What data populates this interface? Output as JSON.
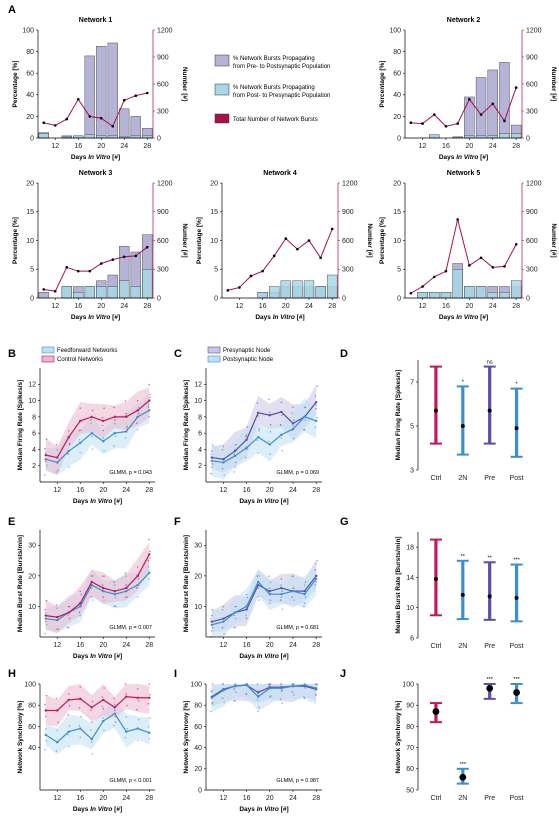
{
  "colors": {
    "pre_post": "#b5b3d8",
    "post_pre": "#a7d8e6",
    "total": "#a8104a",
    "ff": "#3a8fd0",
    "ff_fill": "#bfe0f2",
    "ctrl": "#c2185b",
    "ctrl_fill": "#e9b8cd",
    "pre": "#5a4fa8",
    "pre_fill": "#c9c4e4",
    "post": "#3a8fd0",
    "post_fill": "#bfe0f2"
  },
  "letters": [
    "A",
    "B",
    "C",
    "D",
    "E",
    "F",
    "G",
    "H",
    "I",
    "J"
  ],
  "days": [
    10,
    12,
    14,
    16,
    18,
    20,
    22,
    24,
    26,
    28
  ],
  "legendA": {
    "item1a": "% Network Bursts Propagating",
    "item1b": "from Pre- to Postsynaptic Population",
    "item2a": "% Network Bursts Propagating",
    "item2b": "from Post- to Presynaptic Population",
    "item3": "Total Number of Network Bursts"
  },
  "axesA": {
    "xlabel": "Days In Vitro [#]",
    "ylabel_left": "Percentage [%]",
    "ylabel_right": "Number [#]",
    "yticks_left": [
      "0",
      "20",
      "40",
      "60",
      "80",
      "100"
    ],
    "yticks_right": [
      "0",
      "300",
      "600",
      "900",
      "1200"
    ],
    "xticks": [
      "12",
      "16",
      "20",
      "24",
      "28"
    ]
  },
  "chart_data": [
    {
      "type": "bar",
      "title": "Network 1",
      "x": [
        10,
        12,
        14,
        16,
        18,
        20,
        22,
        24,
        26,
        28
      ],
      "series": [
        {
          "name": "% Network Bursts Propagating from Pre- to Postsynaptic Population",
          "values": [
            5,
            0,
            2,
            2,
            76,
            85,
            88,
            27,
            20,
            9
          ]
        },
        {
          "name": "% Network Bursts Propagating from Post- to Presynaptic Population",
          "values": [
            4,
            0,
            1,
            2,
            3,
            2,
            2,
            1,
            2,
            2
          ]
        },
        {
          "name": "Total Number of Network Bursts",
          "values": [
            170,
            140,
            210,
            430,
            240,
            220,
            130,
            420,
            470,
            500
          ]
        }
      ],
      "ylim": [
        0,
        100
      ],
      "y2lim": [
        0,
        1200
      ]
    },
    {
      "type": "bar",
      "title": "Network 2",
      "x": [
        10,
        12,
        14,
        16,
        18,
        20,
        22,
        24,
        26,
        28
      ],
      "series": [
        {
          "name": "% Network Bursts Propagating from Pre- to Postsynaptic Population",
          "values": [
            0,
            0,
            3,
            0,
            1,
            38,
            56,
            63,
            70,
            12
          ]
        },
        {
          "name": "% Network Bursts Propagating from Post- to Presynaptic Population",
          "values": [
            0,
            0,
            3,
            0,
            1,
            2,
            2,
            2,
            4,
            4
          ]
        },
        {
          "name": "Total Number of Network Bursts",
          "values": [
            170,
            160,
            260,
            130,
            160,
            430,
            260,
            380,
            190,
            560
          ]
        }
      ],
      "ylim": [
        0,
        100
      ],
      "y2lim": [
        0,
        1200
      ]
    },
    {
      "type": "bar",
      "title": "Network 3",
      "x": [
        10,
        12,
        14,
        16,
        18,
        20,
        22,
        24,
        26,
        28
      ],
      "series": [
        {
          "name": "% Network Bursts Propagating from Pre- to Postsynaptic Population",
          "values": [
            1,
            0,
            2,
            2,
            2,
            3,
            4,
            9,
            8,
            11
          ]
        },
        {
          "name": "% Network Bursts Propagating from Post- to Presynaptic Population",
          "values": [
            0,
            0,
            2,
            1,
            2,
            2,
            2,
            3,
            2,
            5
          ]
        },
        {
          "name": "Total Number of Network Bursts",
          "values": [
            90,
            70,
            320,
            280,
            280,
            360,
            400,
            430,
            440,
            530
          ]
        }
      ],
      "ylim": [
        0,
        20
      ],
      "y2lim": [
        0,
        1200
      ],
      "yticks_left": [
        "0",
        "5",
        "10",
        "15",
        "20"
      ]
    },
    {
      "type": "bar",
      "title": "Network 4",
      "x": [
        10,
        12,
        14,
        16,
        18,
        20,
        22,
        24,
        26,
        28
      ],
      "series": [
        {
          "name": "% Network Bursts Propagating from Pre- to Postsynaptic Population",
          "values": [
            0,
            0,
            0,
            1,
            1,
            2,
            2,
            2,
            2,
            2
          ]
        },
        {
          "name": "% Network Bursts Propagating from Post- to Presynaptic Population",
          "values": [
            0,
            0,
            0,
            1,
            2,
            3,
            3,
            3,
            2,
            4
          ]
        },
        {
          "name": "Total Number of Network Bursts",
          "values": [
            80,
            110,
            230,
            280,
            440,
            620,
            510,
            600,
            420,
            720
          ]
        }
      ],
      "ylim": [
        0,
        20
      ],
      "y2lim": [
        0,
        1200
      ],
      "yticks_left": [
        "0",
        "5",
        "10",
        "15",
        "20"
      ]
    },
    {
      "type": "bar",
      "title": "Network 5",
      "x": [
        10,
        12,
        14,
        16,
        18,
        20,
        22,
        24,
        26,
        28
      ],
      "series": [
        {
          "name": "% Network Bursts Propagating from Pre- to Postsynaptic Population",
          "values": [
            0,
            1,
            1,
            1,
            6,
            2,
            2,
            2,
            2,
            2
          ]
        },
        {
          "name": "% Network Bursts Propagating from Post- to Presynaptic Population",
          "values": [
            0,
            1,
            1,
            1,
            5,
            2,
            2,
            1,
            1,
            3
          ]
        },
        {
          "name": "Total Number of Network Bursts",
          "values": [
            50,
            120,
            220,
            280,
            820,
            340,
            420,
            320,
            330,
            560
          ]
        }
      ],
      "ylim": [
        0,
        20
      ],
      "y2lim": [
        0,
        1200
      ],
      "yticks_left": [
        "0",
        "5",
        "10",
        "15",
        "20"
      ]
    },
    {
      "type": "line",
      "panel": "B",
      "x": [
        10,
        12,
        14,
        16,
        18,
        20,
        22,
        24,
        26,
        28
      ],
      "legend": [
        "Feedforward Networks",
        "Control Networks"
      ],
      "series": [
        {
          "name": "Feedforward Networks",
          "values": [
            2.8,
            2.4,
            3.8,
            4.8,
            6.0,
            5.0,
            6.0,
            6.2,
            8.0,
            8.8
          ]
        },
        {
          "name": "Control Networks",
          "values": [
            3.3,
            3.0,
            5.5,
            7.5,
            8.0,
            7.5,
            8.0,
            8.0,
            8.8,
            10.0
          ]
        }
      ],
      "annotation": "GLMM, p = 0.043",
      "ylabel": "Median Firing Rate [Spikes/s]",
      "xlabel": "Days In Vitro [#]",
      "ylim": [
        0,
        14
      ]
    },
    {
      "type": "line",
      "panel": "C",
      "x": [
        10,
        12,
        14,
        16,
        18,
        20,
        22,
        24,
        26,
        28
      ],
      "legend": [
        "Presynaptic Node",
        "Postsynaptic Node"
      ],
      "series": [
        {
          "name": "Presynaptic Node",
          "values": [
            3.0,
            2.8,
            3.8,
            5.2,
            8.5,
            8.2,
            8.6,
            7.2,
            8.0,
            9.8
          ]
        },
        {
          "name": "Postsynaptic Node",
          "values": [
            2.6,
            2.4,
            3.2,
            4.2,
            5.5,
            4.6,
            5.8,
            6.5,
            8.0,
            7.5
          ]
        }
      ],
      "annotation": "GLMM, p = 0.069",
      "ylabel": "Median Firing Rate [Spikes/s]",
      "xlabel": "Days In Vitro [#]",
      "ylim": [
        0,
        14
      ]
    },
    {
      "type": "scatter",
      "panel": "D",
      "categories": [
        "Ctrl",
        "2N",
        "Pre",
        "Post"
      ],
      "values": [
        5.7,
        5.0,
        5.7,
        4.9
      ],
      "lower": [
        4.2,
        3.7,
        4.2,
        3.6
      ],
      "upper": [
        7.7,
        6.8,
        7.7,
        6.7
      ],
      "significance": [
        "",
        "*",
        "ns",
        "*"
      ],
      "ylabel": "Median Firing Rate [Spikes/s]",
      "ylim": [
        3,
        8
      ],
      "yticks": [
        "3",
        "5",
        "7"
      ]
    },
    {
      "type": "line",
      "panel": "E",
      "x": [
        10,
        12,
        14,
        16,
        18,
        20,
        22,
        24,
        26,
        28
      ],
      "series": [
        {
          "name": "Feedforward Networks",
          "values": [
            6,
            5.5,
            8,
            10,
            17,
            15,
            14,
            15,
            17,
            21
          ]
        },
        {
          "name": "Control Networks",
          "values": [
            7,
            6.5,
            8,
            11,
            18,
            16,
            15,
            16,
            20,
            27
          ]
        }
      ],
      "annotation": "GLMM, p = 0.007",
      "ylabel": "Median Burst Rate [Bursts/min]",
      "xlabel": "Days In Vitro [#]",
      "ylim": [
        0,
        35
      ]
    },
    {
      "type": "line",
      "panel": "F",
      "x": [
        10,
        12,
        14,
        16,
        18,
        20,
        22,
        24,
        26,
        28
      ],
      "series": [
        {
          "name": "Presynaptic Node",
          "values": [
            5,
            6,
            8,
            9,
            17,
            15,
            16,
            15,
            15,
            20
          ]
        },
        {
          "name": "Postsynaptic Node",
          "values": [
            4,
            5,
            8,
            10,
            18,
            14,
            14,
            15,
            14,
            19
          ]
        }
      ],
      "annotation": "GLMM, p = 0.681",
      "ylabel": "Median Burst Rate [Bursts/min]",
      "xlabel": "Days In Vitro [#]",
      "ylim": [
        0,
        35
      ]
    },
    {
      "type": "scatter",
      "panel": "G",
      "categories": [
        "Ctrl",
        "2N",
        "Pre",
        "Post"
      ],
      "values": [
        13.8,
        11.7,
        11.5,
        11.3
      ],
      "lower": [
        9.0,
        8.5,
        8.4,
        8.2
      ],
      "upper": [
        19.0,
        16.2,
        16.0,
        15.7
      ],
      "significance": [
        "",
        "**",
        "**",
        "***"
      ],
      "ylabel": "Median Burst Rate [Bursts/min]",
      "ylim": [
        6,
        20
      ],
      "yticks": [
        "6",
        "10",
        "14",
        "18"
      ]
    },
    {
      "type": "line",
      "panel": "H",
      "x": [
        10,
        12,
        14,
        16,
        18,
        20,
        22,
        24,
        26,
        28
      ],
      "series": [
        {
          "name": "Feedforward Networks",
          "values": [
            52,
            45,
            55,
            58,
            48,
            65,
            72,
            55,
            58,
            54
          ]
        },
        {
          "name": "Control Networks",
          "values": [
            75,
            75,
            85,
            86,
            78,
            85,
            78,
            88,
            87,
            87
          ]
        }
      ],
      "annotation": "GLMM, p < 0.001",
      "ylabel": "Network Synchrony [%]",
      "xlabel": "Days In Vitro [#]",
      "ylim": [
        0,
        100
      ]
    },
    {
      "type": "line",
      "panel": "I",
      "x": [
        10,
        12,
        14,
        16,
        18,
        20,
        22,
        24,
        26,
        28
      ],
      "series": [
        {
          "name": "Presynaptic Node",
          "values": [
            88,
            95,
            98,
            99,
            92,
            97,
            97,
            98,
            98,
            95
          ]
        },
        {
          "name": "Postsynaptic Node",
          "values": [
            87,
            94,
            98,
            99,
            88,
            96,
            96,
            98,
            99,
            96
          ]
        }
      ],
      "annotation": "GLMM, p = 0.987",
      "ylabel": "Network Synchrony [%]",
      "xlabel": "Days In Vitro [#]",
      "ylim": [
        0,
        100
      ]
    },
    {
      "type": "scatter",
      "panel": "J",
      "categories": [
        "Ctrl",
        "2N",
        "Pre",
        "Post"
      ],
      "values": [
        87,
        56,
        98,
        96
      ],
      "lower": [
        82,
        53,
        93,
        91
      ],
      "upper": [
        91,
        60,
        101,
        101
      ],
      "significance": [
        "",
        "***",
        "***",
        "***"
      ],
      "ylabel": "Network Synchrony [%]",
      "ylim": [
        50,
        100
      ],
      "yticks": [
        "50",
        "60",
        "70",
        "80",
        "90",
        "100"
      ]
    }
  ]
}
